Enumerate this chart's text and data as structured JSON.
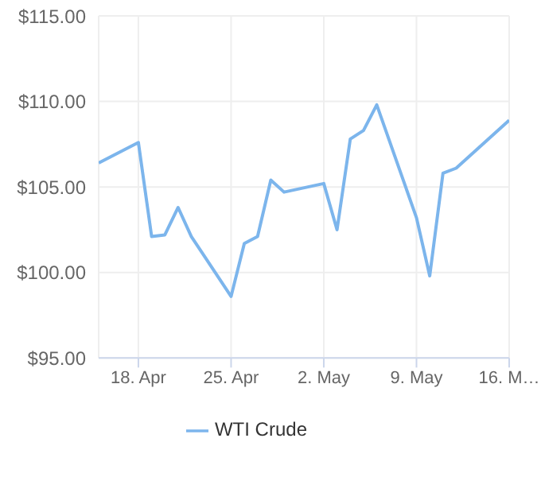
{
  "chart_data": {
    "type": "line",
    "x": [
      "--04-15",
      "--04-18",
      "--04-19",
      "--04-20",
      "--04-21",
      "--04-22",
      "--04-25",
      "--04-26",
      "--04-27",
      "--04-28",
      "--04-29",
      "--05-02",
      "--05-03",
      "--05-04",
      "--05-05",
      "--05-06",
      "--05-09",
      "--05-10",
      "--05-11",
      "--05-12",
      "--05-16"
    ],
    "series": [
      {
        "name": "WTI Crude",
        "color": "#7cb5ec",
        "values": [
          106.4,
          107.6,
          102.1,
          102.2,
          103.8,
          102.1,
          98.6,
          101.7,
          102.1,
          105.4,
          104.7,
          105.2,
          102.5,
          107.8,
          108.3,
          109.8,
          103.2,
          99.8,
          105.8,
          106.1,
          108.9
        ]
      }
    ],
    "xlim": [
      "--04-15",
      "--05-16"
    ],
    "xticks": [
      {
        "value": "--04-18",
        "label": "18. Apr"
      },
      {
        "value": "--04-25",
        "label": "25. Apr"
      },
      {
        "value": "--05-02",
        "label": "2. May"
      },
      {
        "value": "--05-09",
        "label": "9. May"
      },
      {
        "value": "--05-16",
        "label": "16. M…"
      }
    ],
    "ylim": [
      95,
      115
    ],
    "yticks": [
      {
        "value": 95,
        "label": "$95.00"
      },
      {
        "value": 100,
        "label": "$100.00"
      },
      {
        "value": 105,
        "label": "$105.00"
      },
      {
        "value": 110,
        "label": "$110.00"
      },
      {
        "value": 115,
        "label": "$115.00"
      }
    ],
    "grid": true,
    "legend": "bottom",
    "marker": "none",
    "line_style": "solid"
  }
}
